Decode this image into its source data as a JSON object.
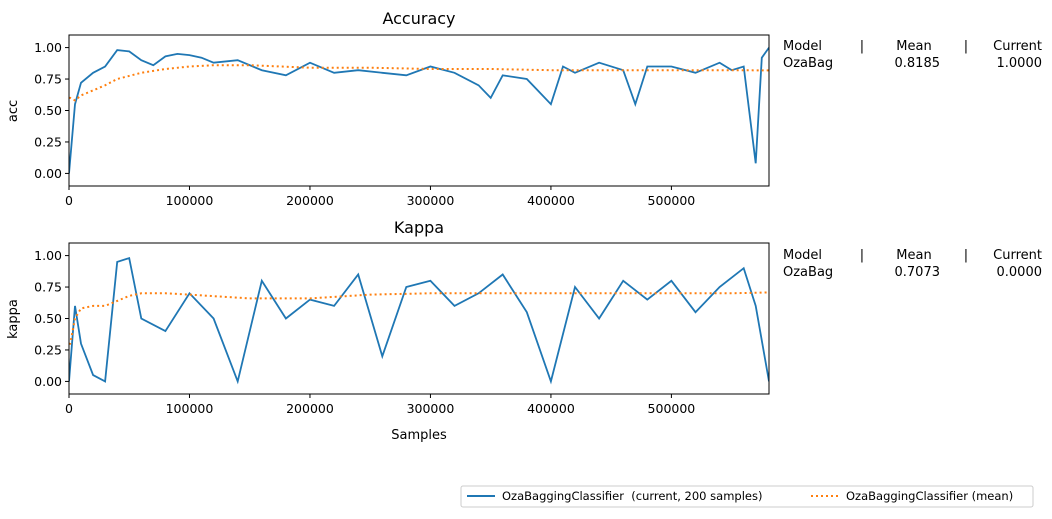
{
  "chart_data": [
    {
      "type": "line",
      "title": "Accuracy",
      "xlabel": "",
      "ylabel": "acc",
      "xlim": [
        0,
        581000
      ],
      "ylim": [
        -0.1,
        1.1
      ],
      "xticks": [
        0,
        100000,
        200000,
        300000,
        400000,
        500000
      ],
      "xtick_labels": [
        "0",
        "100000",
        "200000",
        "300000",
        "400000",
        "500000"
      ],
      "yticks": [
        0.0,
        0.25,
        0.5,
        0.75,
        1.0
      ],
      "ytick_labels": [
        "0.00",
        "0.25",
        "0.50",
        "0.75",
        "1.00"
      ],
      "grid": false,
      "series": [
        {
          "name": "OzaBaggingClassifier  (current, 200 samples)",
          "style": "solid",
          "color": "#1f77b4",
          "x": [
            0,
            5000,
            10000,
            20000,
            30000,
            40000,
            50000,
            60000,
            70000,
            80000,
            90000,
            100000,
            110000,
            120000,
            140000,
            160000,
            180000,
            200000,
            220000,
            240000,
            260000,
            280000,
            300000,
            320000,
            340000,
            350000,
            360000,
            380000,
            390000,
            400000,
            410000,
            420000,
            440000,
            460000,
            470000,
            480000,
            500000,
            520000,
            540000,
            550000,
            560000,
            570000,
            575000,
            581000
          ],
          "y": [
            0.0,
            0.55,
            0.72,
            0.8,
            0.85,
            0.98,
            0.97,
            0.9,
            0.86,
            0.93,
            0.95,
            0.94,
            0.92,
            0.88,
            0.9,
            0.82,
            0.78,
            0.88,
            0.8,
            0.82,
            0.8,
            0.78,
            0.85,
            0.8,
            0.7,
            0.6,
            0.78,
            0.75,
            0.65,
            0.55,
            0.85,
            0.8,
            0.88,
            0.82,
            0.55,
            0.85,
            0.85,
            0.8,
            0.88,
            0.82,
            0.85,
            0.08,
            0.92,
            1.0
          ]
        },
        {
          "name": "OzaBaggingClassifier (mean)",
          "style": "dotted",
          "color": "#ff7f0e",
          "x": [
            0,
            1000,
            5000,
            10000,
            20000,
            30000,
            40000,
            60000,
            80000,
            100000,
            120000,
            150000,
            200000,
            250000,
            300000,
            350000,
            400000,
            450000,
            500000,
            550000,
            581000
          ],
          "y": [
            0.6,
            0.6,
            0.58,
            0.62,
            0.66,
            0.7,
            0.75,
            0.8,
            0.83,
            0.85,
            0.86,
            0.86,
            0.84,
            0.84,
            0.83,
            0.83,
            0.82,
            0.82,
            0.82,
            0.82,
            0.8185
          ]
        }
      ],
      "table": {
        "headers": [
          "Model",
          "|",
          "Mean",
          "|",
          "Current"
        ],
        "row": [
          "OzaBag",
          "0.8185",
          "1.0000"
        ]
      }
    },
    {
      "type": "line",
      "title": "Kappa",
      "xlabel": "Samples",
      "ylabel": "kappa",
      "xlim": [
        0,
        581000
      ],
      "ylim": [
        -0.1,
        1.1
      ],
      "xticks": [
        0,
        100000,
        200000,
        300000,
        400000,
        500000
      ],
      "xtick_labels": [
        "0",
        "100000",
        "200000",
        "300000",
        "400000",
        "500000"
      ],
      "yticks": [
        0.0,
        0.25,
        0.5,
        0.75,
        1.0
      ],
      "ytick_labels": [
        "0.00",
        "0.25",
        "0.50",
        "0.75",
        "1.00"
      ],
      "grid": false,
      "series": [
        {
          "name": "OzaBaggingClassifier  (current, 200 samples)",
          "style": "solid",
          "color": "#1f77b4",
          "x": [
            0,
            5000,
            10000,
            20000,
            30000,
            40000,
            50000,
            60000,
            80000,
            100000,
            120000,
            140000,
            160000,
            180000,
            200000,
            220000,
            240000,
            260000,
            280000,
            300000,
            320000,
            340000,
            360000,
            380000,
            400000,
            420000,
            440000,
            460000,
            480000,
            500000,
            520000,
            540000,
            560000,
            570000,
            581000
          ],
          "y": [
            0.0,
            0.6,
            0.3,
            0.05,
            0.0,
            0.95,
            0.98,
            0.5,
            0.4,
            0.7,
            0.5,
            0.0,
            0.8,
            0.5,
            0.65,
            0.6,
            0.85,
            0.2,
            0.75,
            0.8,
            0.6,
            0.7,
            0.85,
            0.55,
            0.0,
            0.75,
            0.5,
            0.8,
            0.65,
            0.8,
            0.55,
            0.75,
            0.9,
            0.6,
            0.0
          ]
        },
        {
          "name": "OzaBaggingClassifier (mean)",
          "style": "dotted",
          "color": "#ff7f0e",
          "x": [
            0,
            1000,
            5000,
            10000,
            20000,
            30000,
            40000,
            50000,
            60000,
            80000,
            100000,
            150000,
            200000,
            250000,
            300000,
            350000,
            400000,
            450000,
            500000,
            550000,
            581000
          ],
          "y": [
            0.3,
            0.3,
            0.5,
            0.58,
            0.6,
            0.6,
            0.64,
            0.68,
            0.7,
            0.7,
            0.69,
            0.66,
            0.66,
            0.69,
            0.7,
            0.7,
            0.7,
            0.7,
            0.7,
            0.7,
            0.7073
          ]
        }
      ],
      "table": {
        "headers": [
          "Model",
          "|",
          "Mean",
          "|",
          "Current"
        ],
        "row": [
          "OzaBag",
          "0.7073",
          "0.0000"
        ]
      }
    }
  ],
  "legend": {
    "placement": "bottom-right",
    "entries": [
      {
        "label": "OzaBaggingClassifier  (current, 200 samples)",
        "style": "solid",
        "color": "#1f77b4"
      },
      {
        "label": "OzaBaggingClassifier (mean)",
        "style": "dotted",
        "color": "#ff7f0e"
      }
    ]
  }
}
